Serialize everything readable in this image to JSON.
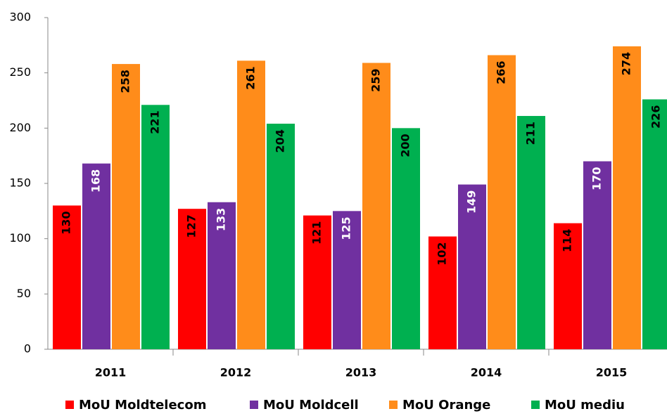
{
  "chart_data": {
    "type": "bar",
    "categories": [
      "2011",
      "2012",
      "2013",
      "2014",
      "2015"
    ],
    "series": [
      {
        "name": "MoU Moldtelecom",
        "color": "#ff0000",
        "label_color": "#000000",
        "values": [
          130,
          127,
          121,
          102,
          114
        ]
      },
      {
        "name": "MoU Moldcell",
        "color": "#7030a0",
        "label_color": "#ffffff",
        "values": [
          168,
          133,
          125,
          149,
          170
        ]
      },
      {
        "name": "MoU Orange",
        "color": "#ff8c1a",
        "label_color": "#000000",
        "values": [
          258,
          261,
          259,
          266,
          274
        ]
      },
      {
        "name": "MoU mediu",
        "color": "#00b050",
        "label_color": "#000000",
        "values": [
          221,
          204,
          200,
          211,
          226
        ]
      }
    ],
    "ylim": [
      0,
      300
    ],
    "yticks": [
      0,
      50,
      100,
      150,
      200,
      250,
      300
    ],
    "grid": false,
    "legend": "bottom"
  }
}
